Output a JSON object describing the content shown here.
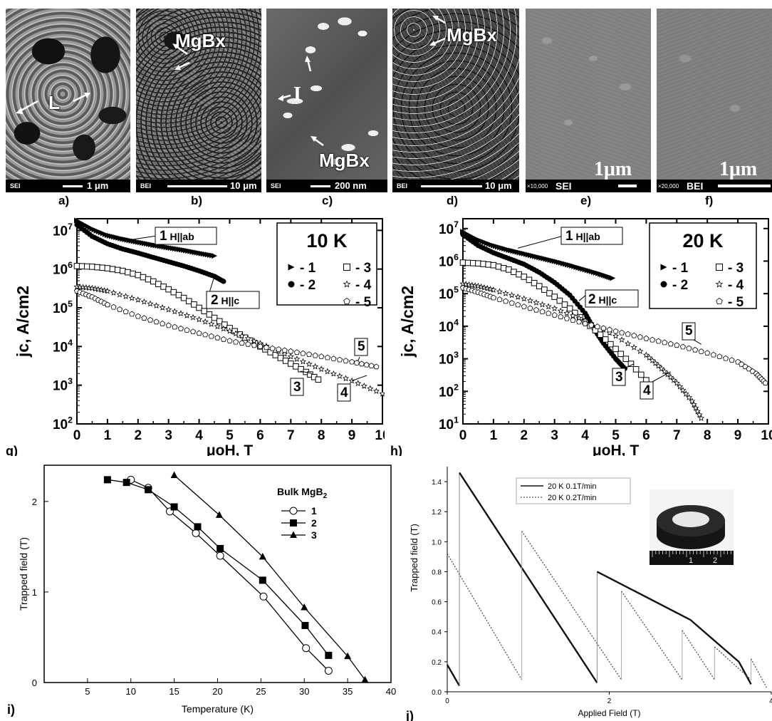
{
  "micrographs": [
    {
      "letter": "a)",
      "mode": "SEI",
      "scale": "1 μm",
      "labels": [
        "L"
      ]
    },
    {
      "letter": "b)",
      "mode": "BEI",
      "scale": "10 μm",
      "labels": [
        "MgBx"
      ]
    },
    {
      "letter": "c)",
      "mode": "SEI",
      "scale": "200 nm",
      "labels": [
        "I",
        "MgBx"
      ]
    },
    {
      "letter": "d)",
      "mode": "BEI",
      "scale": "10 μm",
      "labels": [
        "MgBx"
      ]
    },
    {
      "letter": "e)",
      "mode": "SEI",
      "magnification": "×10,000",
      "scale": "1μm"
    },
    {
      "letter": "f)",
      "mode": "BEI",
      "magnification": "×20,000",
      "scale": "1μm"
    }
  ],
  "chart_data": [
    {
      "panel": "g)",
      "type": "scatter",
      "xlabel": "μoH, T",
      "ylabel": "jc, A/cm2",
      "xlim": [
        0,
        10
      ],
      "ylim": [
        100,
        20000000
      ],
      "yscale": "log",
      "xticks": [
        "0",
        "1",
        "2",
        "3",
        "4",
        "5",
        "6",
        "7",
        "8",
        "9",
        "10"
      ],
      "yticks": [
        "10^2",
        "10^3",
        "10^4",
        "10^5",
        "10^6",
        "10^7"
      ],
      "legend_title": "10 K",
      "legend": [
        "- 1",
        "- 2",
        "- 3",
        "- 4",
        "- 5"
      ],
      "annotations": [
        "1 H||ab",
        "2 H||c",
        "3",
        "4",
        "5"
      ],
      "series": [
        {
          "name": "1",
          "marker": "triangle-right",
          "x": [
            0,
            0.5,
            1,
            1.5,
            2,
            2.5,
            3,
            3.5,
            4,
            4.5
          ],
          "y": [
            18000000,
            11000000,
            7500000,
            6000000,
            5000000,
            4200000,
            3600000,
            3100000,
            2600000,
            2200000
          ]
        },
        {
          "name": "2",
          "marker": "circle-filled",
          "x": [
            0,
            0.5,
            1,
            1.5,
            2,
            2.5,
            3,
            3.5,
            4,
            4.5,
            4.8
          ],
          "y": [
            14000000,
            7000000,
            4500000,
            3300000,
            2600000,
            2000000,
            1550000,
            1200000,
            900000,
            650000,
            480000
          ]
        },
        {
          "name": "3",
          "marker": "square-open",
          "x": [
            0,
            0.5,
            1,
            1.5,
            2,
            2.5,
            3,
            3.5,
            4,
            4.5,
            5,
            5.5,
            6,
            6.5,
            7,
            7.5,
            7.9
          ],
          "y": [
            1200000,
            1150000,
            1050000,
            900000,
            700000,
            480000,
            300000,
            180000,
            100000,
            55000,
            30000,
            17000,
            10000,
            6000,
            3600,
            2200,
            1400
          ]
        },
        {
          "name": "4",
          "marker": "star-open",
          "x": [
            0,
            0.5,
            1,
            2,
            3,
            4,
            5,
            6,
            7,
            8,
            9,
            10
          ],
          "y": [
            350000,
            320000,
            270000,
            160000,
            90000,
            50000,
            25000,
            12000,
            5500,
            2600,
            1300,
            600
          ]
        },
        {
          "name": "5",
          "marker": "pentagon-open",
          "x": [
            0,
            0.5,
            1,
            2,
            3,
            4,
            5,
            6,
            7,
            8,
            9,
            9.8
          ],
          "y": [
            270000,
            190000,
            120000,
            60000,
            35000,
            22000,
            14000,
            10000,
            7500,
            5500,
            4000,
            3000
          ]
        }
      ]
    },
    {
      "panel": "h)",
      "type": "scatter",
      "xlabel": "μoH, T",
      "ylabel": "jc, A/cm2",
      "xlim": [
        0,
        10
      ],
      "ylim": [
        10,
        20000000
      ],
      "yscale": "log",
      "xticks": [
        "0",
        "1",
        "2",
        "3",
        "4",
        "5",
        "6",
        "7",
        "8",
        "9",
        "10"
      ],
      "yticks": [
        "10^1",
        "10^2",
        "10^3",
        "10^4",
        "10^5",
        "10^6",
        "10^7"
      ],
      "legend_title": "20 K",
      "legend": [
        "- 1",
        "- 2",
        "- 3",
        "- 4",
        "- 5"
      ],
      "annotations": [
        "1 H||ab",
        "2 H||c",
        "3",
        "4",
        "5"
      ],
      "series": [
        {
          "name": "1",
          "marker": "triangle-right",
          "x": [
            0,
            0.5,
            1,
            1.5,
            2,
            2.5,
            3,
            3.5,
            4,
            4.5,
            4.9
          ],
          "y": [
            8000000,
            4500000,
            3000000,
            2200000,
            1700000,
            1300000,
            1000000,
            750000,
            550000,
            400000,
            300000
          ]
        },
        {
          "name": "2",
          "marker": "circle-filled",
          "x": [
            0,
            0.5,
            1,
            1.5,
            2,
            2.5,
            3,
            3.5,
            4,
            4.3,
            4.6,
            5,
            5.3
          ],
          "y": [
            6500000,
            3000000,
            1800000,
            1200000,
            800000,
            450000,
            220000,
            90000,
            25000,
            8000,
            3000,
            1000,
            500
          ]
        },
        {
          "name": "3",
          "marker": "square-open",
          "x": [
            0,
            0.5,
            1,
            1.5,
            2,
            2.5,
            3,
            3.5,
            4,
            4.5,
            5,
            5.5,
            6
          ],
          "y": [
            900000,
            850000,
            750000,
            550000,
            330000,
            170000,
            80000,
            35000,
            14000,
            5500,
            2000,
            700,
            220
          ]
        },
        {
          "name": "4",
          "marker": "star-open",
          "x": [
            0,
            0.5,
            1,
            2,
            3,
            4,
            5,
            6,
            6.5,
            7,
            7.5,
            7.8
          ],
          "y": [
            200000,
            170000,
            130000,
            70000,
            35000,
            15000,
            5000,
            1300,
            500,
            180,
            50,
            15
          ]
        },
        {
          "name": "5",
          "marker": "pentagon-open",
          "x": [
            0,
            0.5,
            1,
            2,
            3,
            4,
            5,
            6,
            7,
            8,
            9,
            9.6,
            9.9
          ],
          "y": [
            150000,
            110000,
            75000,
            40000,
            22000,
            12000,
            7000,
            4200,
            2600,
            1500,
            800,
            350,
            180
          ]
        }
      ]
    },
    {
      "panel": "i)",
      "type": "line",
      "xlabel": "Temperature (K)",
      "ylabel": "Trapped field (T)",
      "xlim": [
        0,
        40
      ],
      "ylim": [
        0,
        2.4
      ],
      "xticks": [
        "5",
        "10",
        "15",
        "20",
        "25",
        "30",
        "35",
        "40"
      ],
      "yticks": [
        "0",
        "1",
        "2"
      ],
      "legend_title": "Bulk MgB2",
      "series": [
        {
          "name": "1",
          "marker": "circle-open",
          "x": [
            10,
            12,
            14.5,
            17.5,
            20.3,
            25.3,
            30.2,
            32.8
          ],
          "y": [
            2.24,
            2.15,
            1.89,
            1.65,
            1.4,
            0.95,
            0.38,
            0.13
          ]
        },
        {
          "name": "2",
          "marker": "square-filled",
          "x": [
            7.3,
            9.5,
            12,
            15,
            17.7,
            20.3,
            25.2,
            30.1,
            32.8
          ],
          "y": [
            2.24,
            2.21,
            2.13,
            1.94,
            1.72,
            1.48,
            1.13,
            0.63,
            0.3
          ]
        },
        {
          "name": "3",
          "marker": "triangle-filled",
          "x": [
            15,
            20.2,
            25.2,
            30,
            35,
            37
          ],
          "y": [
            2.29,
            1.85,
            1.39,
            0.83,
            0.29,
            0.03
          ]
        }
      ]
    },
    {
      "panel": "j)",
      "type": "line",
      "xlabel": "Applied Field (T)",
      "ylabel": "Trapped field (T)",
      "xlim": [
        0,
        4
      ],
      "ylim": [
        0,
        1.5
      ],
      "xticks": [
        "0",
        "2",
        "4"
      ],
      "yticks": [
        "0.0",
        "0.2",
        "0.4",
        "0.6",
        "0.8",
        "1.0",
        "1.2",
        "1.4"
      ],
      "legend": [
        "20 K 0.1T/min",
        "20 K 0.2T/min"
      ],
      "inset_ruler_labels": [
        "1",
        "2"
      ],
      "series": [
        {
          "name": "20 K 0.1T/min",
          "x": [
            0,
            0.15,
            0.15,
            1.85,
            1.85,
            3.0,
            3.6,
            3.75
          ],
          "y": [
            0.18,
            0.04,
            1.46,
            0.06,
            0.8,
            0.48,
            0.2,
            0.05
          ]
        },
        {
          "name": "20 K 0.2T/min",
          "x": [
            0,
            0.92,
            0.92,
            2.15,
            2.15,
            2.9,
            2.9,
            3.3,
            3.3,
            3.75,
            3.75,
            3.95
          ],
          "y": [
            0.92,
            0.08,
            1.07,
            0.08,
            0.67,
            0.08,
            0.41,
            0.08,
            0.3,
            0.08,
            0.22,
            0.02
          ]
        }
      ]
    }
  ]
}
